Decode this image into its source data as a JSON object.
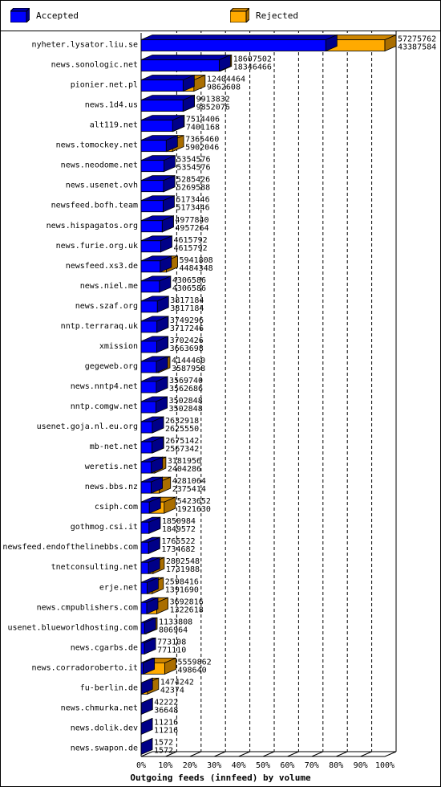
{
  "legend": {
    "accepted_label": "Accepted",
    "rejected_label": "Rejected"
  },
  "colors": {
    "accepted": "#0000ff",
    "rejected": "#ffaa00",
    "grid": "#000000",
    "background": "#ffffff"
  },
  "chart_data": {
    "type": "bar",
    "orientation": "horizontal",
    "stacked": true,
    "title": "",
    "xlabel": "Outgoing feeds (innfeed) by volume",
    "ylabel": "",
    "xlim": [
      0,
      100
    ],
    "x_ticks": [
      "0%",
      "10%",
      "20%",
      "30%",
      "40%",
      "50%",
      "60%",
      "70%",
      "80%",
      "90%",
      "100%"
    ],
    "grid": true,
    "legend_position": "top",
    "series": [
      {
        "name": "Accepted"
      },
      {
        "name": "Rejected"
      }
    ],
    "rows": [
      {
        "site": "nyheter.lysator.liu.se",
        "total": 57275762,
        "accepted": 43387584
      },
      {
        "site": "news.sonologic.net",
        "total": 18607502,
        "accepted": 18346466
      },
      {
        "site": "pionier.net.pl",
        "total": 12404464,
        "accepted": 9862608
      },
      {
        "site": "news.1d4.us",
        "total": 9913832,
        "accepted": 9852076
      },
      {
        "site": "alt119.net",
        "total": 7514406,
        "accepted": 7401168
      },
      {
        "site": "news.tomockey.net",
        "total": 7365460,
        "accepted": 5902046
      },
      {
        "site": "news.neodome.net",
        "total": 5354576,
        "accepted": 5354576
      },
      {
        "site": "news.usenet.ovh",
        "total": 5285426,
        "accepted": 5269588
      },
      {
        "site": "newsfeed.bofh.team",
        "total": 5173446,
        "accepted": 5173446
      },
      {
        "site": "news.hispagatos.org",
        "total": 4977840,
        "accepted": 4957264
      },
      {
        "site": "news.furie.org.uk",
        "total": 4615792,
        "accepted": 4615792
      },
      {
        "site": "newsfeed.xs3.de",
        "total": 5941808,
        "accepted": 4484348
      },
      {
        "site": "news.niel.me",
        "total": 4306586,
        "accepted": 4306586
      },
      {
        "site": "news.szaf.org",
        "total": 3817184,
        "accepted": 3817184
      },
      {
        "site": "nntp.terraraq.uk",
        "total": 3749296,
        "accepted": 3717246
      },
      {
        "site": "xmission",
        "total": 3702426,
        "accepted": 3663698
      },
      {
        "site": "gegeweb.org",
        "total": 4144460,
        "accepted": 3587958
      },
      {
        "site": "news.nntp4.net",
        "total": 3569740,
        "accepted": 3562686
      },
      {
        "site": "nntp.comgw.net",
        "total": 3502848,
        "accepted": 3502848
      },
      {
        "site": "usenet.goja.nl.eu.org",
        "total": 2632918,
        "accepted": 2625550
      },
      {
        "site": "mb-net.net",
        "total": 2675142,
        "accepted": 2567342
      },
      {
        "site": "weretis.net",
        "total": 3181956,
        "accepted": 2404286
      },
      {
        "site": "news.bbs.nz",
        "total": 4281064,
        "accepted": 2375414
      },
      {
        "site": "csiph.com",
        "total": 5423652,
        "accepted": 1921630
      },
      {
        "site": "gothmog.csi.it",
        "total": 1850984,
        "accepted": 1849572
      },
      {
        "site": "newsfeed.endofthelinebbs.com",
        "total": 1765522,
        "accepted": 1734682
      },
      {
        "site": "tnetconsulting.net",
        "total": 2802548,
        "accepted": 1731988
      },
      {
        "site": "erje.net",
        "total": 2598416,
        "accepted": 1391690
      },
      {
        "site": "news.cmpublishers.com",
        "total": 3692816,
        "accepted": 1322618
      },
      {
        "site": "usenet.blueworldhosting.com",
        "total": 1133808,
        "accepted": 806964
      },
      {
        "site": "news.cgarbs.de",
        "total": 773108,
        "accepted": 771110
      },
      {
        "site": "news.corradoroberto.it",
        "total": 5559862,
        "accepted": 498640
      },
      {
        "site": "fu-berlin.de",
        "total": 1474242,
        "accepted": 42374
      },
      {
        "site": "news.chmurka.net",
        "total": 42222,
        "accepted": 36648
      },
      {
        "site": "news.dolik.dev",
        "total": 11216,
        "accepted": 11216
      },
      {
        "site": "news.swapon.de",
        "total": 1572,
        "accepted": 1572
      }
    ]
  }
}
